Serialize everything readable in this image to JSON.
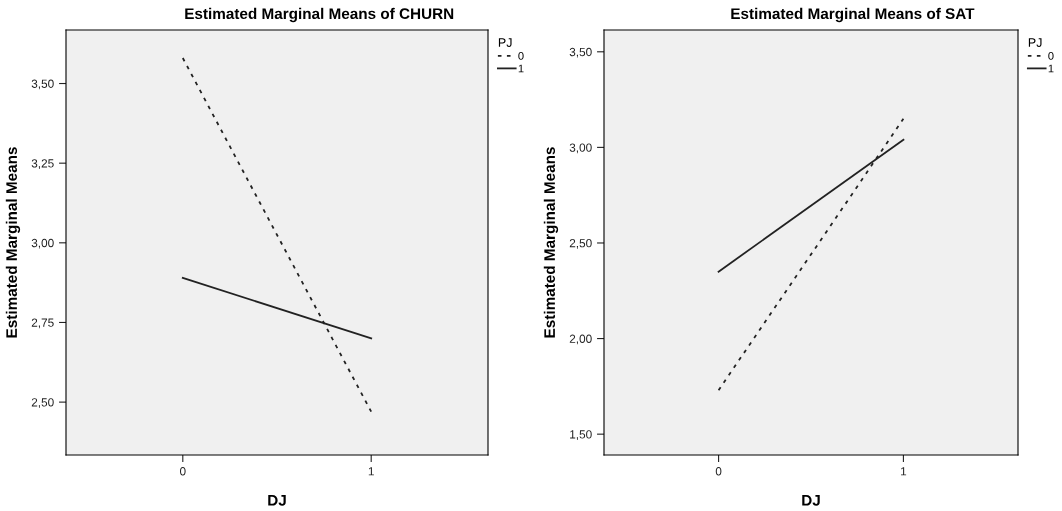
{
  "chart_data": [
    {
      "type": "line",
      "title": "Estimated Marginal Means of CHURN",
      "xlabel": "DJ",
      "ylabel": "Estimated Marginal Means",
      "legend_title": "PJ",
      "categories": [
        "0",
        "1"
      ],
      "series": [
        {
          "name": "0",
          "color": "#222222",
          "values": [
            3.58,
            2.47
          ],
          "line_style": "dotted"
        },
        {
          "name": "1",
          "color": "#222222",
          "values": [
            2.89,
            2.7
          ],
          "line_style": "solid"
        }
      ],
      "ylim": [
        2.334,
        3.668
      ],
      "yticks": [
        {
          "value": 2.5,
          "label": "2,50"
        },
        {
          "value": 2.75,
          "label": "2,75"
        },
        {
          "value": 3.0,
          "label": "3,00"
        },
        {
          "value": 3.25,
          "label": "3,25"
        },
        {
          "value": 3.5,
          "label": "3,50"
        }
      ],
      "legend": "top right",
      "grid": false,
      "marker": "none"
    },
    {
      "type": "line",
      "title": "Estimated Marginal Means of SAT",
      "xlabel": "DJ",
      "ylabel": "Estimated Marginal Means",
      "legend_title": "PJ",
      "categories": [
        "0",
        "1"
      ],
      "series": [
        {
          "name": "0",
          "color": "#222222",
          "values": [
            1.73,
            3.15
          ],
          "line_style": "dotted"
        },
        {
          "name": "1",
          "color": "#222222",
          "values": [
            2.35,
            3.04
          ],
          "line_style": "solid"
        }
      ],
      "ylim": [
        1.391,
        3.614
      ],
      "yticks": [
        {
          "value": 1.5,
          "label": "1,50"
        },
        {
          "value": 2.0,
          "label": "2,00"
        },
        {
          "value": 2.5,
          "label": "2,50"
        },
        {
          "value": 3.0,
          "label": "3,00"
        },
        {
          "value": 3.5,
          "label": "3,50"
        }
      ],
      "legend": "top right",
      "grid": false,
      "marker": "none"
    }
  ]
}
